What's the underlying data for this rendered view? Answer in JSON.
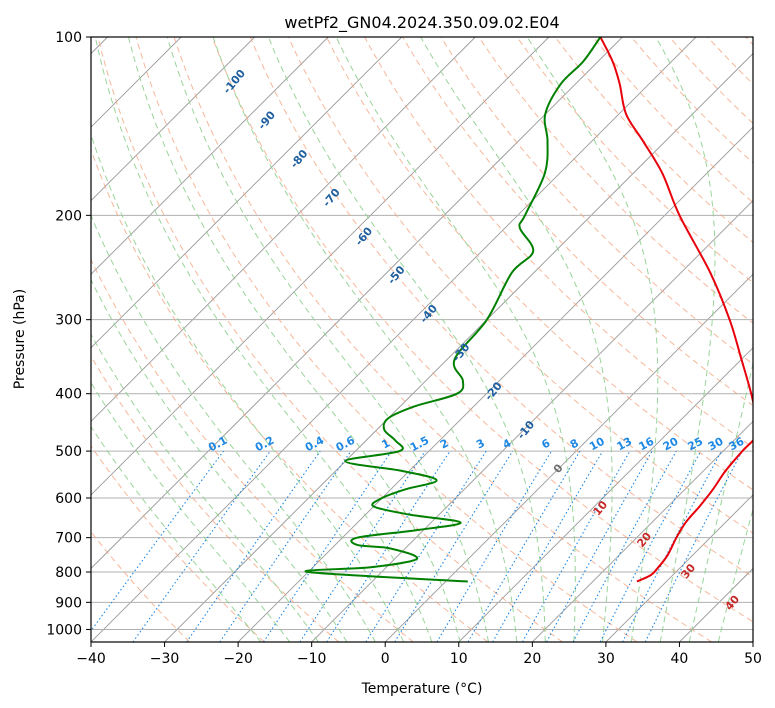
{
  "chart_data": {
    "type": "line",
    "title": "wetPf2_GN04.2024.350.09.02.E04",
    "xlabel": "Temperature (°C)",
    "ylabel": "Pressure (hPa)",
    "xlim": [
      -40,
      50
    ],
    "ylim": [
      1050,
      100
    ],
    "y_scale": "log",
    "grid": true,
    "x_ticks": [
      -40,
      -30,
      -20,
      -10,
      0,
      10,
      20,
      30,
      40,
      50
    ],
    "y_ticks": [
      100,
      200,
      300,
      400,
      500,
      600,
      700,
      800,
      900,
      1000
    ],
    "colors": {
      "temperature": "#e8000b",
      "dewpoint": "#008000",
      "dry_adiabat": "#f4a582",
      "moist_adiabat": "#8fcf8f",
      "mixing_ratio": "#1e88e5",
      "isotherm": "#999999",
      "dry_adiabat_label": "#1f5f9f",
      "moist_adiabat_label": "#c62828"
    },
    "series": [
      {
        "name": "",
        "role": "temperature",
        "points": [
          {
            "p": 830,
            "t": 26
          },
          {
            "p": 810,
            "t": 27
          },
          {
            "p": 790,
            "t": 27
          },
          {
            "p": 750,
            "t": 26.6
          },
          {
            "p": 700,
            "t": 25.4
          },
          {
            "p": 660,
            "t": 24.6
          },
          {
            "p": 620,
            "t": 24.3
          },
          {
            "p": 580,
            "t": 23.8
          },
          {
            "p": 540,
            "t": 23
          },
          {
            "p": 500,
            "t": 22.6
          },
          {
            "p": 470,
            "t": 22.4
          },
          {
            "p": 440,
            "t": 20
          },
          {
            "p": 400,
            "t": 16
          },
          {
            "p": 350,
            "t": 10
          },
          {
            "p": 300,
            "t": 3
          },
          {
            "p": 250,
            "t": -6
          },
          {
            "p": 200,
            "t": -18
          },
          {
            "p": 170,
            "t": -26
          },
          {
            "p": 150,
            "t": -33
          },
          {
            "p": 135,
            "t": -39
          },
          {
            "p": 120,
            "t": -44
          },
          {
            "p": 110,
            "t": -48
          },
          {
            "p": 100,
            "t": -53
          }
        ]
      },
      {
        "name": "",
        "role": "dewpoint",
        "points": [
          {
            "p": 830,
            "t": 3
          },
          {
            "p": 800,
            "t": -20
          },
          {
            "p": 785,
            "t": -12
          },
          {
            "p": 760,
            "t": -7
          },
          {
            "p": 730,
            "t": -12
          },
          {
            "p": 720,
            "t": -17
          },
          {
            "p": 700,
            "t": -18
          },
          {
            "p": 680,
            "t": -11
          },
          {
            "p": 660,
            "t": -6
          },
          {
            "p": 640,
            "t": -14
          },
          {
            "p": 620,
            "t": -20
          },
          {
            "p": 600,
            "t": -20
          },
          {
            "p": 580,
            "t": -18
          },
          {
            "p": 560,
            "t": -15
          },
          {
            "p": 540,
            "t": -21
          },
          {
            "p": 520,
            "t": -30
          },
          {
            "p": 500,
            "t": -24
          },
          {
            "p": 480,
            "t": -26
          },
          {
            "p": 460,
            "t": -29
          },
          {
            "p": 440,
            "t": -30
          },
          {
            "p": 420,
            "t": -28
          },
          {
            "p": 400,
            "t": -24
          },
          {
            "p": 380,
            "t": -25
          },
          {
            "p": 350,
            "t": -29
          },
          {
            "p": 300,
            "t": -30
          },
          {
            "p": 250,
            "t": -33
          },
          {
            "p": 230,
            "t": -33
          },
          {
            "p": 210,
            "t": -38
          },
          {
            "p": 200,
            "t": -39
          },
          {
            "p": 170,
            "t": -42
          },
          {
            "p": 150,
            "t": -46
          },
          {
            "p": 135,
            "t": -50
          },
          {
            "p": 120,
            "t": -52
          },
          {
            "p": 110,
            "t": -52
          },
          {
            "p": 100,
            "t": -53
          }
        ]
      }
    ],
    "mixing_ratio_labels": [
      "0.1",
      "0.2",
      "0.4",
      "0.6",
      "1",
      "1.5",
      "2",
      "3",
      "4",
      "6",
      "8",
      "10",
      "13",
      "16",
      "20",
      "25",
      "30",
      "36"
    ],
    "mixing_ratio_values": [
      0.1,
      0.2,
      0.4,
      0.6,
      1,
      1.5,
      2,
      3,
      4,
      6,
      8,
      10,
      13,
      16,
      20,
      25,
      30,
      36
    ],
    "dry_adiabat_labels": [
      "-100",
      "-90",
      "-80",
      "-70",
      "-60",
      "-50",
      "-40",
      "-30",
      "-20",
      "-10",
      "0"
    ],
    "moist_adiabat_labels": [
      "10",
      "20",
      "30",
      "40"
    ]
  }
}
